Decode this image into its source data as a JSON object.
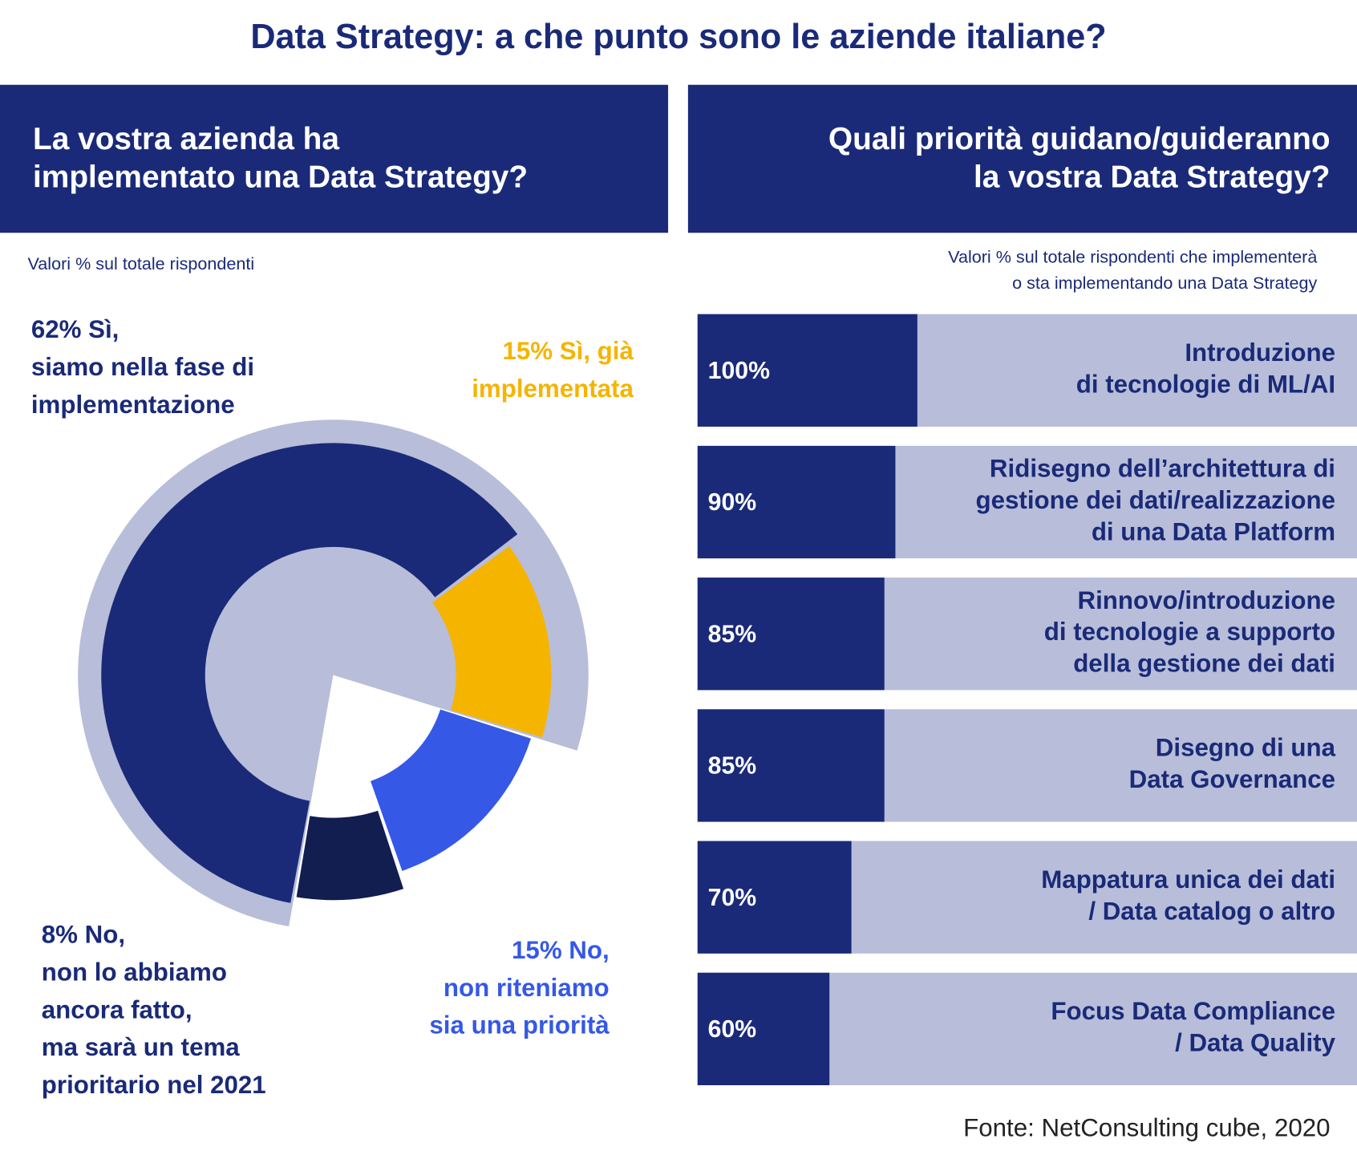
{
  "title": "Data Strategy: a che punto sono le aziende italiane?",
  "source": "Fonte: NetConsulting cube, 2020",
  "chart_data": [
    {
      "type": "donut",
      "title": [
        "La vostra azienda ha",
        "implementato una Data Strategy?"
      ],
      "subtitle": [
        "Valori % sul totale rispondenti"
      ],
      "categories": [
        [
          "Sì,",
          "siamo nella fase di",
          "implementazione"
        ],
        [
          "Sì, già",
          "implementata"
        ],
        [
          "No,",
          "non riteniamo",
          "sia una priorità"
        ],
        [
          "No,",
          "non lo abbiamo",
          "ancora fatto,",
          "ma sarà un tema",
          "prioritario nel 2021"
        ]
      ],
      "values": [
        62,
        15,
        15,
        8
      ],
      "value_labels": [
        "62%",
        "15%",
        "15%",
        "8%"
      ],
      "colors": [
        "#1a2a78",
        "#f5b400",
        "#3558e6",
        "#121d50"
      ]
    },
    {
      "type": "bar",
      "orientation": "horizontal",
      "title": [
        "Quali priorità guidano/guideranno",
        "la vostra Data Strategy?"
      ],
      "subtitle": [
        "Valori % sul totale rispondenti che implementerà",
        "o sta implementando una Data Strategy"
      ],
      "categories": [
        [
          "Introduzione",
          "di tecnologie di ML/AI"
        ],
        [
          "Ridisegno dell’architettura di",
          "gestione dei dati/realizzazione",
          "di una Data Platform"
        ],
        [
          "Rinnovo/introduzione",
          "di tecnologie a supporto",
          "della gestione dei dati"
        ],
        [
          "Disegno di una",
          "Data Governance"
        ],
        [
          "Mappatura unica dei dati",
          "/ Data catalog o altro"
        ],
        [
          "Focus Data Compliance",
          "/ Data Quality"
        ]
      ],
      "values": [
        100,
        90,
        85,
        85,
        70,
        60
      ],
      "value_labels": [
        "100%",
        "90%",
        "85%",
        "85%",
        "70%",
        "60%"
      ],
      "xlim": [
        0,
        300
      ],
      "color": "#1a2a78",
      "track_color": "#b8bdd9"
    }
  ]
}
